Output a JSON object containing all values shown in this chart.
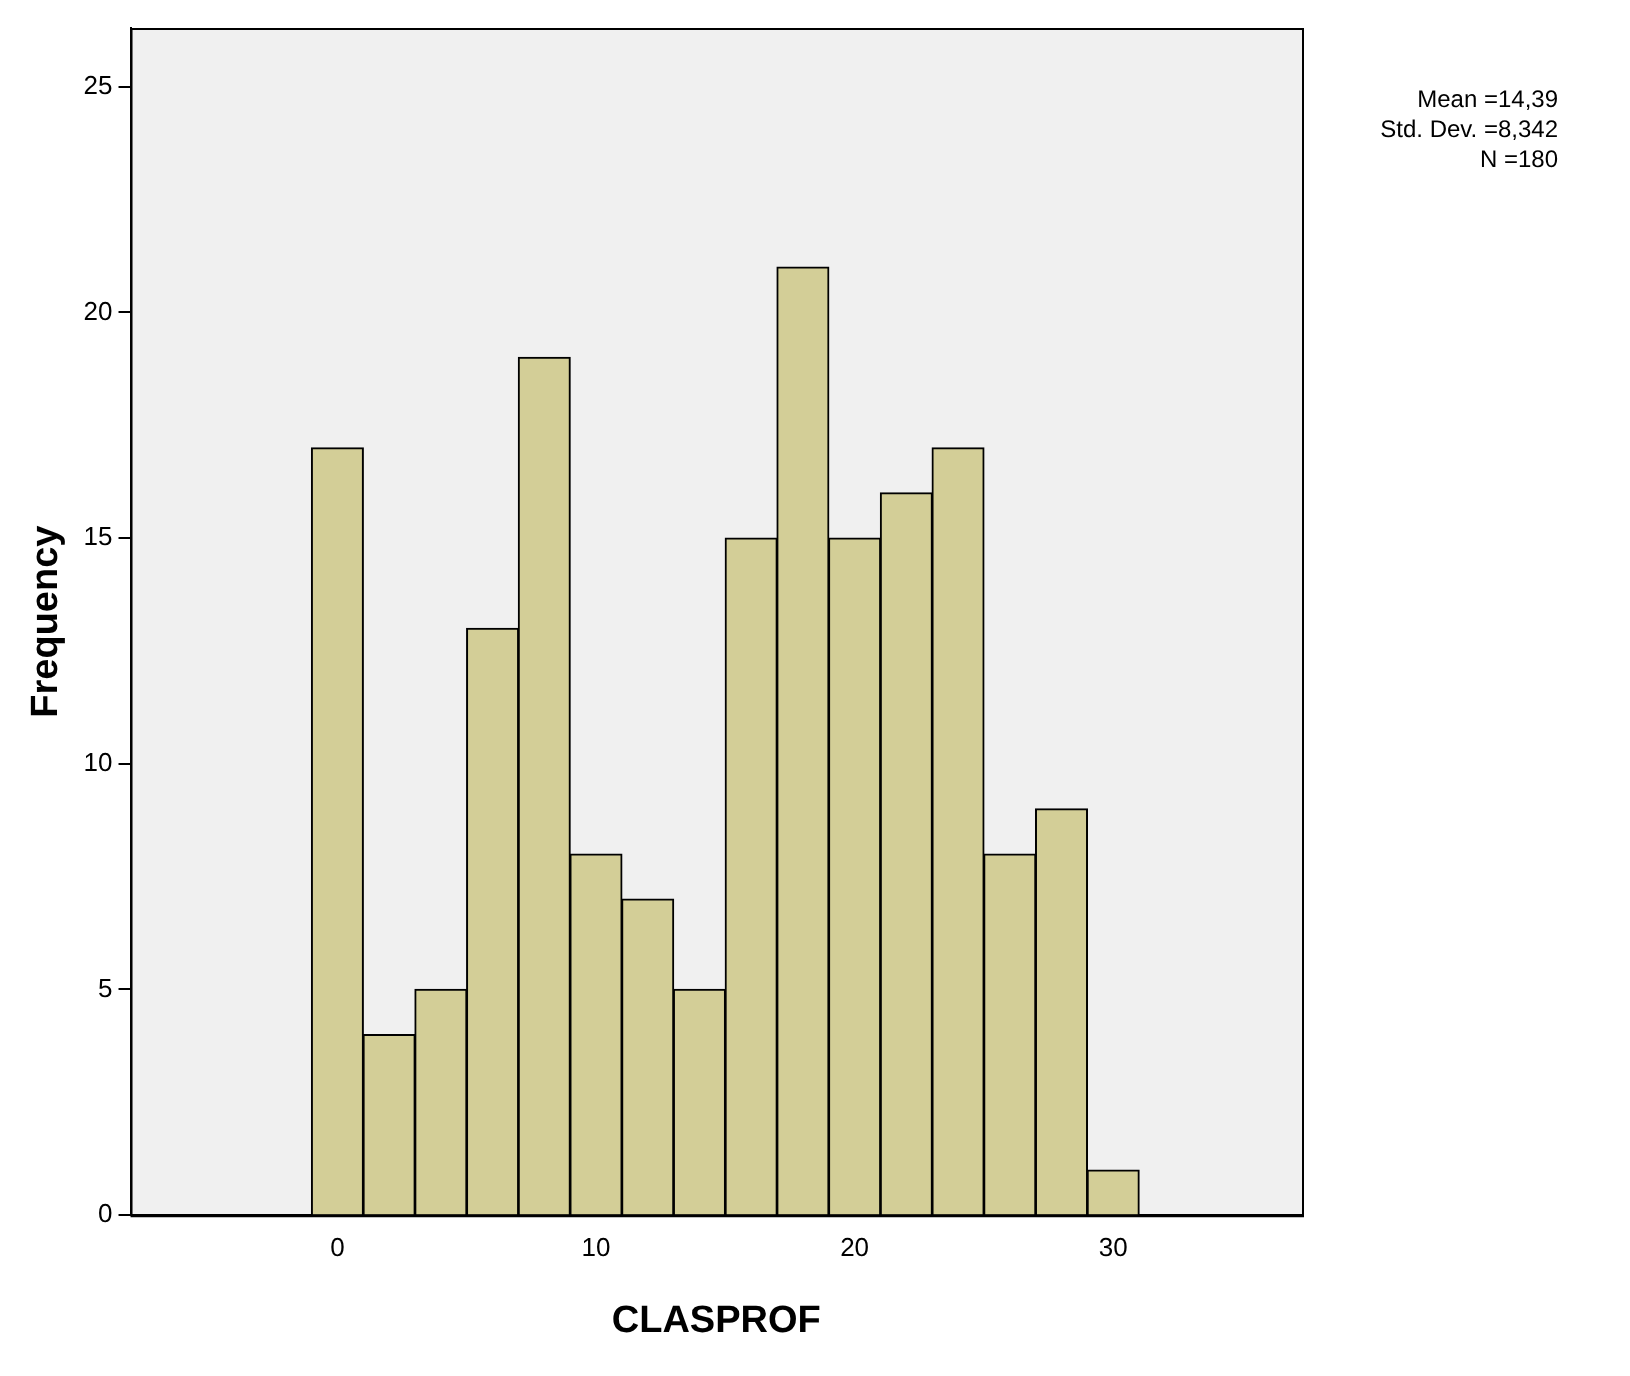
{
  "chart_data": {
    "type": "histogram",
    "xlabel": "CLASPROF",
    "ylabel": "Frequency",
    "bins": [
      -1,
      1,
      3,
      5,
      7,
      9,
      11,
      13,
      15,
      17,
      19,
      21,
      23,
      25,
      27,
      29,
      31
    ],
    "values": [
      17,
      4,
      5,
      13,
      19,
      8,
      7,
      5,
      15,
      21,
      15,
      16,
      17,
      8,
      9,
      1
    ],
    "color": "#d3ce97",
    "xlim": [
      -8,
      37.3
    ],
    "xticks": [
      0,
      10,
      20,
      30
    ],
    "ylim": [
      0,
      26.3
    ],
    "yticks": [
      0,
      5,
      10,
      15,
      20,
      25
    ],
    "grid": false,
    "legend": false,
    "annotations": [
      "Mean =14,39",
      "Std. Dev. =8,342",
      "N =180"
    ]
  }
}
